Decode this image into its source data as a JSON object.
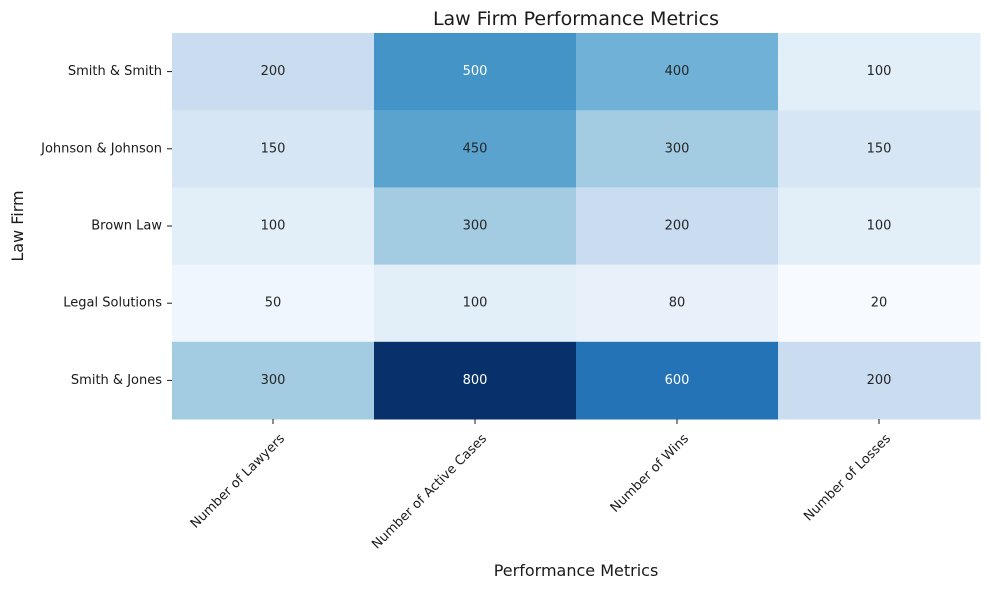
{
  "chart_data": {
    "type": "heatmap",
    "title": "Law Firm Performance Metrics",
    "xlabel": "Performance Metrics",
    "ylabel": "Law Firm",
    "x_categories": [
      "Number of Lawyers",
      "Number of Active Cases",
      "Number of Wins",
      "Number of Losses"
    ],
    "y_categories": [
      "Smith & Smith",
      "Johnson & Johnson",
      "Brown Law",
      "Legal Solutions",
      "Smith & Jones"
    ],
    "values": [
      [
        200,
        500,
        400,
        100
      ],
      [
        150,
        450,
        300,
        150
      ],
      [
        100,
        300,
        200,
        100
      ],
      [
        50,
        100,
        80,
        20
      ],
      [
        300,
        800,
        600,
        200
      ]
    ],
    "colormap": "Blues",
    "value_range": [
      20,
      800
    ],
    "annotations": true,
    "colorbar": false
  }
}
